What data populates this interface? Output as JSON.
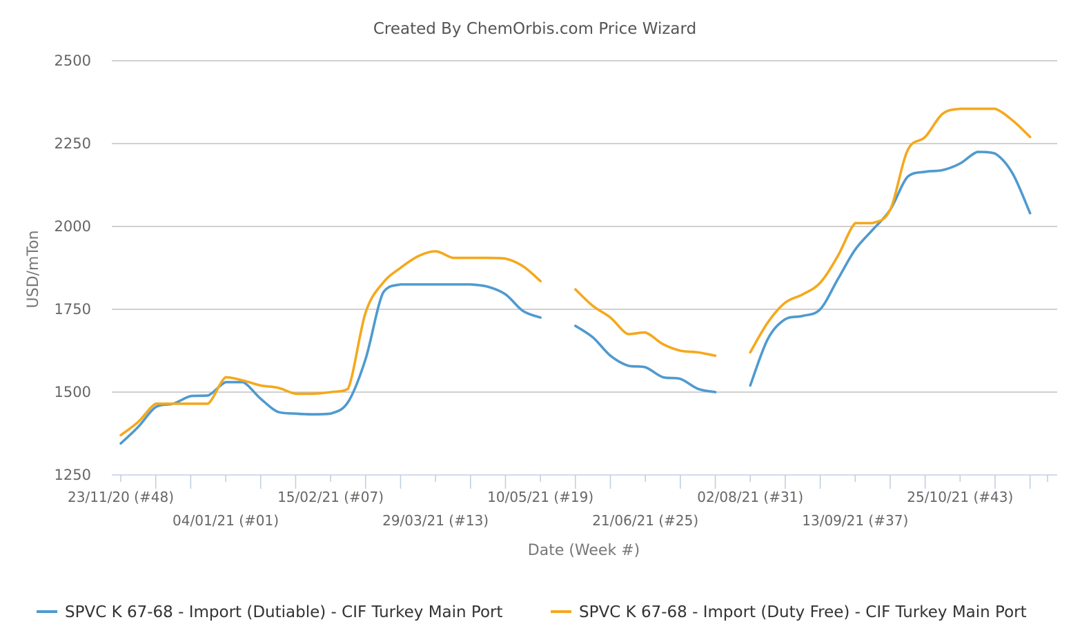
{
  "chart_data": {
    "type": "line",
    "title": "Created By ChemOrbis.com Price Wizard",
    "xlabel": "Date (Week #)",
    "ylabel": "USD/mTon",
    "ylim": [
      1250,
      2500
    ],
    "yticks": [
      1250,
      1500,
      1750,
      2000,
      2250,
      2500
    ],
    "grid": true,
    "legend_position": "bottom",
    "x_tick_labels": [
      "23/11/20 (#48)",
      "04/01/21 (#01)",
      "15/02/21 (#07)",
      "29/03/21 (#13)",
      "10/05/21 (#19)",
      "21/06/21 (#25)",
      "02/08/21 (#31)",
      "13/09/21 (#37)",
      "25/10/21 (#43)"
    ],
    "x_ticks": [
      "23/11/20",
      "07/12/20",
      "21/12/20",
      "04/01/21",
      "18/01/21",
      "01/02/21",
      "15/02/21",
      "01/03/21",
      "15/03/21",
      "29/03/21",
      "12/04/21",
      "26/04/21",
      "10/05/21",
      "24/05/21",
      "07/06/21",
      "21/06/21",
      "05/07/21",
      "19/07/21",
      "02/08/21",
      "16/08/21",
      "30/08/21",
      "13/09/21",
      "27/09/21",
      "11/10/21",
      "25/10/21",
      "08/11/21",
      "22/11/21",
      "29/11/21"
    ],
    "series": [
      {
        "name": "SPVC K 67-68 - Import (Dutiable) - CIF Turkey Main Port",
        "color": "#4e9ad0",
        "points": [
          [
            "23/11/20",
            1345
          ],
          [
            "30/11/20",
            1395
          ],
          [
            "07/12/20",
            1455
          ],
          [
            "14/12/20",
            1465
          ],
          [
            "21/12/20",
            1488
          ],
          [
            "28/12/20",
            1490
          ],
          [
            "04/01/21",
            1530
          ],
          [
            "11/01/21",
            1530
          ],
          [
            "18/01/21",
            1480
          ],
          [
            "25/01/21",
            1440
          ],
          [
            "01/02/21",
            1435
          ],
          [
            "08/02/21",
            1433
          ],
          [
            "15/02/21",
            1435
          ],
          [
            "22/02/21",
            1470
          ],
          [
            "01/03/21",
            1600
          ],
          [
            "08/03/21",
            1800
          ],
          [
            "15/03/21",
            1825
          ],
          [
            "22/03/21",
            1825
          ],
          [
            "29/03/21",
            1825
          ],
          [
            "05/04/21",
            1825
          ],
          [
            "12/04/21",
            1825
          ],
          [
            "19/04/21",
            1818
          ],
          [
            "26/04/21",
            1795
          ],
          [
            "03/05/21",
            1745
          ],
          [
            "10/05/21",
            1725
          ],
          null,
          [
            "24/05/21",
            1700
          ],
          [
            "31/05/21",
            1665
          ],
          [
            "07/06/21",
            1610
          ],
          [
            "14/06/21",
            1580
          ],
          [
            "21/06/21",
            1575
          ],
          [
            "28/06/21",
            1545
          ],
          [
            "05/07/21",
            1540
          ],
          [
            "12/07/21",
            1510
          ],
          [
            "19/07/21",
            1500
          ],
          null,
          [
            "02/08/21",
            1520
          ],
          [
            "09/08/21",
            1660
          ],
          [
            "16/08/21",
            1720
          ],
          [
            "23/08/21",
            1730
          ],
          [
            "30/08/21",
            1750
          ],
          [
            "06/09/21",
            1840
          ],
          [
            "13/09/21",
            1930
          ],
          [
            "20/09/21",
            1990
          ],
          [
            "27/09/21",
            2050
          ],
          [
            "04/10/21",
            2150
          ],
          [
            "11/10/21",
            2165
          ],
          [
            "18/10/21",
            2170
          ],
          [
            "25/10/21",
            2190
          ],
          [
            "01/11/21",
            2225
          ],
          [
            "08/11/21",
            2220
          ],
          [
            "15/11/21",
            2160
          ],
          [
            "22/11/21",
            2040
          ]
        ]
      },
      {
        "name": "SPVC K 67-68 - Import (Duty Free) - CIF Turkey Main Port",
        "color": "#f5a81c",
        "points": [
          [
            "23/11/20",
            1370
          ],
          [
            "30/11/20",
            1410
          ],
          [
            "07/12/20",
            1465
          ],
          [
            "14/12/20",
            1465
          ],
          [
            "21/12/20",
            1465
          ],
          [
            "28/12/20",
            1465
          ],
          [
            "04/01/21",
            1545
          ],
          [
            "11/01/21",
            1535
          ],
          [
            "18/01/21",
            1520
          ],
          [
            "25/01/21",
            1513
          ],
          [
            "01/02/21",
            1495
          ],
          [
            "08/02/21",
            1495
          ],
          [
            "15/02/21",
            1500
          ],
          [
            "22/02/21",
            1510
          ],
          [
            "01/03/21",
            1740
          ],
          [
            "08/03/21",
            1830
          ],
          [
            "15/03/21",
            1875
          ],
          [
            "22/03/21",
            1910
          ],
          [
            "29/03/21",
            1925
          ],
          [
            "05/04/21",
            1905
          ],
          [
            "12/04/21",
            1905
          ],
          [
            "19/04/21",
            1905
          ],
          [
            "26/04/21",
            1903
          ],
          [
            "03/05/21",
            1880
          ],
          [
            "10/05/21",
            1835
          ],
          null,
          [
            "24/05/21",
            1810
          ],
          [
            "31/05/21",
            1760
          ],
          [
            "07/06/21",
            1725
          ],
          [
            "14/06/21",
            1675
          ],
          [
            "21/06/21",
            1680
          ],
          [
            "28/06/21",
            1645
          ],
          [
            "05/07/21",
            1625
          ],
          [
            "12/07/21",
            1620
          ],
          [
            "19/07/21",
            1610
          ],
          null,
          [
            "02/08/21",
            1620
          ],
          [
            "09/08/21",
            1710
          ],
          [
            "16/08/21",
            1770
          ],
          [
            "23/08/21",
            1795
          ],
          [
            "30/08/21",
            1830
          ],
          [
            "06/09/21",
            1910
          ],
          [
            "13/09/21",
            2010
          ],
          [
            "20/09/21",
            2010
          ],
          [
            "27/09/21",
            2050
          ],
          [
            "04/10/21",
            2230
          ],
          [
            "11/10/21",
            2270
          ],
          [
            "18/10/21",
            2340
          ],
          [
            "25/10/21",
            2355
          ],
          [
            "01/11/21",
            2355
          ],
          [
            "08/11/21",
            2355
          ],
          [
            "15/11/21",
            2320
          ],
          [
            "22/11/21",
            2270
          ]
        ]
      }
    ]
  }
}
